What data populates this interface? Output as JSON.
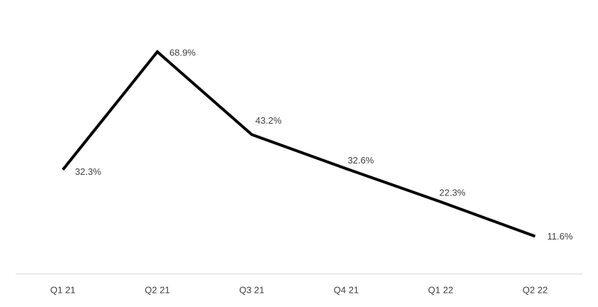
{
  "chart_data": {
    "type": "line",
    "categories": [
      "Q1 21",
      "Q2 21",
      "Q3 21",
      "Q4 21",
      "Q1 22",
      "Q2 22"
    ],
    "values": [
      32.3,
      68.9,
      43.2,
      32.6,
      22.3,
      11.6
    ],
    "value_labels": [
      "32.3%",
      "68.9%",
      "43.2%",
      "32.6%",
      "22.3%",
      "11.6%"
    ],
    "color": "#000000",
    "ylim": [
      0,
      85
    ]
  }
}
